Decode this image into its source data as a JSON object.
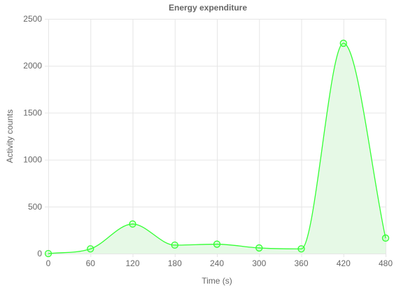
{
  "chart_data": {
    "type": "line",
    "title": "Energy expenditure",
    "xlabel": "Time (s)",
    "ylabel": "Activity counts",
    "x": [
      0,
      60,
      120,
      180,
      240,
      300,
      360,
      420,
      480
    ],
    "series": [
      {
        "values": [
          0,
          50,
          315,
          90,
          100,
          60,
          50,
          2240,
          165
        ]
      }
    ],
    "xlim": [
      0,
      480
    ],
    "ylim": [
      0,
      2500
    ],
    "x_ticks": [
      "0",
      "60",
      "120",
      "180",
      "240",
      "300",
      "360",
      "420",
      "480"
    ],
    "y_ticks": [
      "0",
      "500",
      "1000",
      "1500",
      "2000",
      "2500"
    ],
    "grid": true,
    "fill": true,
    "smooth": true,
    "line_color": "#33ff33",
    "fill_color": "#e6f9e6"
  }
}
